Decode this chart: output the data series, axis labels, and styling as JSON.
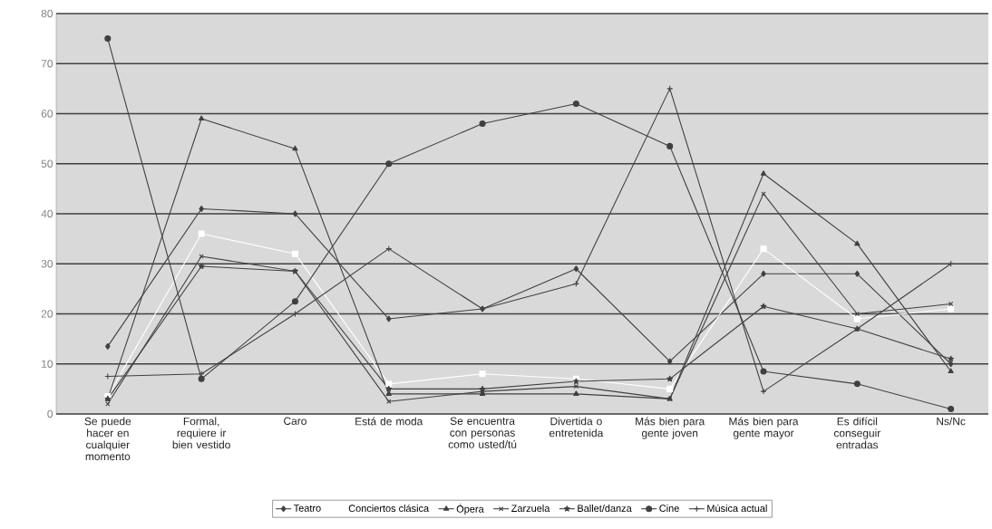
{
  "chart_data": {
    "type": "line",
    "categories": [
      "Se puede hacer en cualquier momento",
      "Formal, requiere ir bien vestido",
      "Caro",
      "Está de moda",
      "Se encuentra con personas como usted/tú",
      "Divertida o entretenida",
      "Más bien para gente joven",
      "Más bien para gente mayor",
      "Es difícil conseguir entradas",
      "Ns/Nc"
    ],
    "series": [
      {
        "name": "Teatro",
        "color": "#404040",
        "marker": "diamond",
        "values": [
          13.5,
          41,
          40,
          19,
          21,
          29,
          10.5,
          28,
          28,
          10
        ]
      },
      {
        "name": "Conciertos clásica",
        "color": "#ffffff",
        "marker": "square",
        "values": [
          3.5,
          36,
          32,
          6,
          8,
          7,
          5,
          33,
          19,
          21
        ]
      },
      {
        "name": "Ópera",
        "color": "#404040",
        "marker": "triangle",
        "values": [
          3,
          59,
          53,
          4,
          4,
          4,
          3,
          48,
          34,
          8.5
        ]
      },
      {
        "name": "Zarzuela",
        "color": "#404040",
        "marker": "cross",
        "values": [
          2,
          31.5,
          28.5,
          2.5,
          4.5,
          5.5,
          3,
          44,
          20,
          22
        ]
      },
      {
        "name": "Ballet/danza",
        "color": "#404040",
        "marker": "star",
        "values": [
          3,
          29.5,
          28.5,
          5,
          5,
          6.5,
          7,
          21.5,
          17,
          11
        ]
      },
      {
        "name": "Cine",
        "color": "#404040",
        "marker": "circle",
        "values": [
          75,
          7,
          22.5,
          50,
          58,
          62,
          53.5,
          8.5,
          6,
          1
        ]
      },
      {
        "name": "Música actual",
        "color": "#404040",
        "marker": "plus",
        "values": [
          7.5,
          8,
          20,
          33,
          21,
          26,
          65,
          4.5,
          17,
          30
        ]
      }
    ],
    "ylim": [
      0,
      80
    ],
    "yticks": [
      0,
      10,
      20,
      30,
      40,
      50,
      60,
      70,
      80
    ],
    "grid": "y",
    "legend": "bottom",
    "line_style": "solid"
  }
}
